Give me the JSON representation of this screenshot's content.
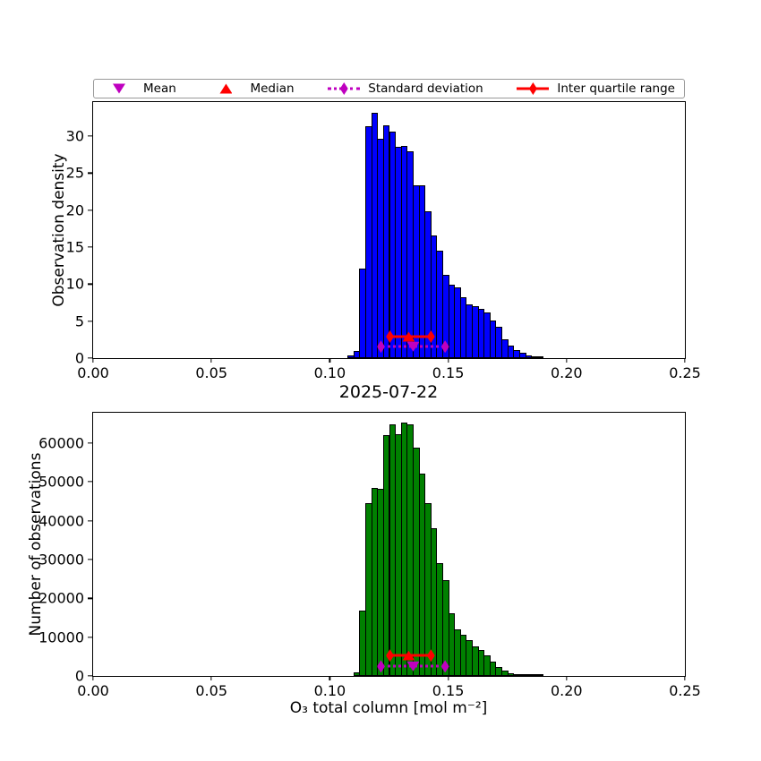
{
  "legend": {
    "border_color": "#999999",
    "items": [
      {
        "label": "Mean",
        "marker": "triangle-down",
        "color": "#BF00BF"
      },
      {
        "label": "Median",
        "marker": "triangle-up",
        "color": "#FF0000"
      },
      {
        "label": "Standard deviation",
        "marker": "diamond-dotted-line",
        "color": "#BF00BF"
      },
      {
        "label": "Inter quartile range",
        "marker": "diamond-solid-line",
        "color": "#FF0000"
      }
    ]
  },
  "chart_data": [
    {
      "type": "bar",
      "subtype": "histogram",
      "title": "",
      "xlabel": "2025-07-22",
      "ylabel": "Observation density",
      "bar_color": "#0000FF",
      "bar_edge_color": "#000000",
      "grid": false,
      "legend_position": "above-axes",
      "xlim": [
        0,
        0.25
      ],
      "ylim": [
        0,
        34.6
      ],
      "xticks": [
        0,
        0.05,
        0.1,
        0.15,
        0.2,
        0.25
      ],
      "xtick_labels": [
        "0.00",
        "0.05",
        "0.10",
        "0.15",
        "0.20",
        "0.25"
      ],
      "yticks": [
        0,
        5,
        10,
        15,
        20,
        25,
        30
      ],
      "ytick_labels": [
        "0",
        "5",
        "10",
        "15",
        "20",
        "25",
        "30"
      ],
      "bin_start": 0.1075,
      "bin_width": 0.0025,
      "values": [
        0.4,
        1.0,
        12.1,
        31.3,
        33.2,
        29.7,
        31.4,
        30.6,
        28.6,
        28.7,
        27.9,
        23.4,
        23.3,
        19.8,
        16.6,
        14.5,
        11.3,
        9.9,
        9.5,
        8.2,
        7.3,
        7.0,
        6.6,
        6.2,
        5.1,
        4.2,
        2.5,
        1.7,
        1.1,
        0.7,
        0.4,
        0.25,
        0.12
      ],
      "stats": {
        "mean": 0.1352,
        "median": 0.1333,
        "std_low": 0.1216,
        "std_high": 0.1487,
        "iqr_low": 0.1254,
        "iqr_high": 0.1427,
        "mean_marker_y": 1.55,
        "median_marker_y": 2.9,
        "mean_color": "#BF00BF",
        "median_color": "#FF0000"
      }
    },
    {
      "type": "bar",
      "subtype": "histogram",
      "title": "",
      "xlabel": "O₃ total column [mol m⁻²]",
      "ylabel": "Number of observations",
      "bar_color": "#008000",
      "bar_edge_color": "#000000",
      "grid": false,
      "xlim": [
        0,
        0.25
      ],
      "ylim": [
        0,
        67800
      ],
      "xticks": [
        0,
        0.05,
        0.1,
        0.15,
        0.2,
        0.25
      ],
      "xtick_labels": [
        "0.00",
        "0.05",
        "0.10",
        "0.15",
        "0.20",
        "0.25"
      ],
      "yticks": [
        0,
        10000,
        20000,
        30000,
        40000,
        50000,
        60000
      ],
      "ytick_labels": [
        "0",
        "10000",
        "20000",
        "30000",
        "40000",
        "50000",
        "60000"
      ],
      "bin_start": 0.11,
      "bin_width": 0.0025,
      "values": [
        900,
        16900,
        44500,
        48500,
        48200,
        62100,
        64800,
        62300,
        65200,
        64800,
        58700,
        52100,
        44500,
        38000,
        29100,
        24700,
        16100,
        11900,
        10600,
        9200,
        7700,
        6800,
        5400,
        3700,
        2300,
        1400,
        800,
        500,
        250,
        120,
        60,
        30
      ],
      "stats": {
        "mean": 0.1352,
        "median": 0.1333,
        "std_low": 0.1216,
        "std_high": 0.1487,
        "iqr_low": 0.1254,
        "iqr_high": 0.1427,
        "mean_marker_y": 2450,
        "median_marker_y": 5250,
        "mean_color": "#BF00BF",
        "median_color": "#FF0000"
      }
    }
  ]
}
